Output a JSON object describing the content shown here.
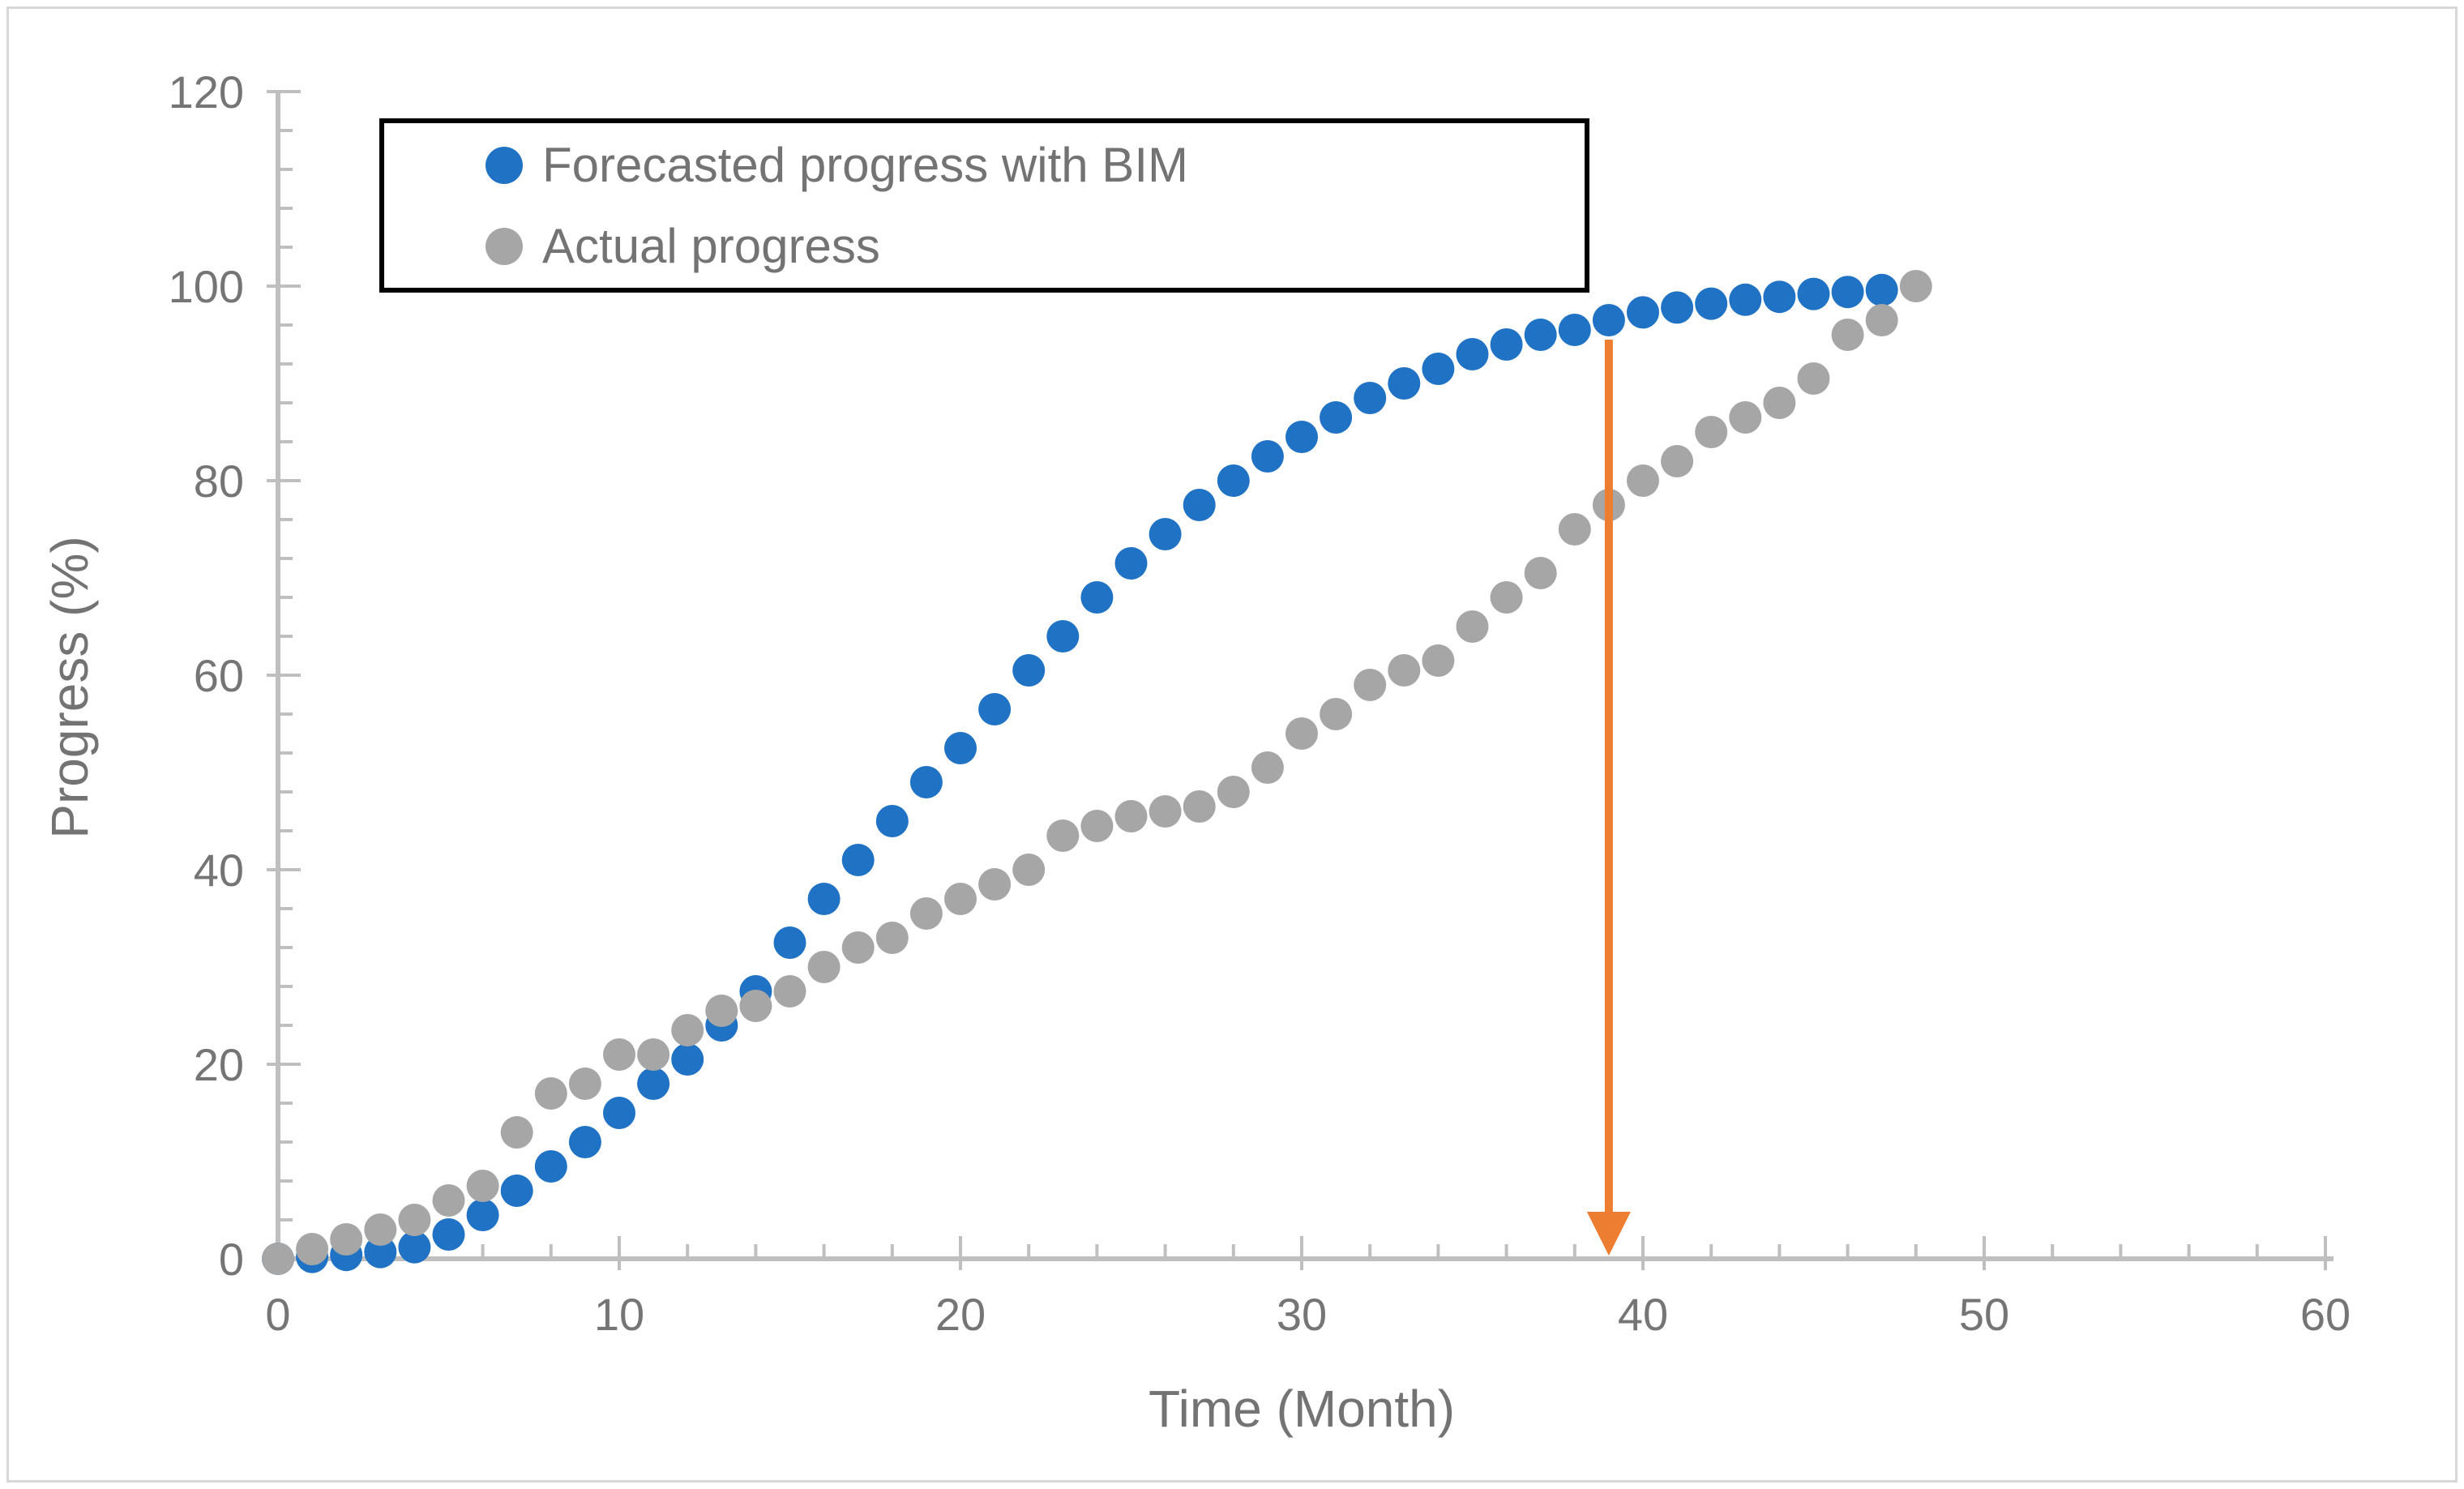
{
  "chart_data": {
    "type": "scatter",
    "title": "",
    "xlabel": "Time (Month)",
    "ylabel": "Progress (%)",
    "xlim": [
      0,
      60
    ],
    "ylim": [
      0,
      120
    ],
    "x_ticks": [
      0,
      10,
      20,
      30,
      40,
      50,
      60
    ],
    "y_ticks": [
      0,
      20,
      40,
      60,
      80,
      100,
      120
    ],
    "x_minor_step": 2,
    "y_minor_step": 4,
    "grid": "off",
    "legend_position": "top-left",
    "axis_color": "#BFBFBF",
    "tick_label_color": "#757575",
    "series": [
      {
        "name": "Forecasted progress with BIM",
        "color": "#1F72C4",
        "x": [
          0,
          1,
          2,
          3,
          4,
          5,
          6,
          7,
          8,
          9,
          10,
          11,
          12,
          13,
          14,
          15,
          16,
          17,
          18,
          19,
          20,
          21,
          22,
          23,
          24,
          25,
          26,
          27,
          28,
          29,
          30,
          31,
          32,
          33,
          34,
          35,
          36,
          37,
          38,
          39,
          40,
          41,
          42,
          43,
          44,
          45,
          46,
          47
        ],
        "values": [
          0,
          0.2,
          0.4,
          0.7,
          1.2,
          2.5,
          4.5,
          7,
          9.5,
          12,
          15,
          18,
          20.5,
          24,
          27.5,
          32.5,
          37,
          41,
          45,
          49,
          52.5,
          56.5,
          60.5,
          64,
          68,
          71.5,
          74.5,
          77.5,
          80,
          82.5,
          84.5,
          86.5,
          88.5,
          90,
          91.5,
          93,
          94,
          95,
          95.5,
          96.5,
          97.3,
          97.8,
          98.2,
          98.6,
          98.9,
          99.2,
          99.4,
          99.6
        ]
      },
      {
        "name": "Actual progress",
        "color": "#A6A6A6",
        "x": [
          0,
          1,
          2,
          3,
          4,
          5,
          6,
          7,
          8,
          9,
          10,
          11,
          12,
          13,
          14,
          15,
          16,
          17,
          18,
          19,
          20,
          21,
          22,
          23,
          24,
          25,
          26,
          27,
          28,
          29,
          30,
          31,
          32,
          33,
          34,
          35,
          36,
          37,
          38,
          39,
          40,
          41,
          42,
          43,
          44,
          45,
          46,
          47,
          48
        ],
        "values": [
          0,
          1,
          2,
          3,
          4,
          6,
          7.5,
          13,
          17,
          18,
          21,
          21,
          23.5,
          25.5,
          26,
          27.5,
          30,
          32,
          33,
          35.5,
          37,
          38.5,
          40,
          43.5,
          44.5,
          45.5,
          46,
          46.5,
          48,
          50.5,
          54,
          56,
          59,
          60.5,
          61.5,
          65,
          68,
          70.5,
          75,
          77.5,
          80,
          82,
          85,
          86.5,
          88,
          90.5,
          95,
          96.5,
          100
        ]
      }
    ],
    "annotation_arrow": {
      "x": 39,
      "y_top": 94.5,
      "y_bottom": 0,
      "color": "#ED7D31",
      "meaning": "vertical drop arrow from forecasted curve to time axis at month 39"
    }
  }
}
